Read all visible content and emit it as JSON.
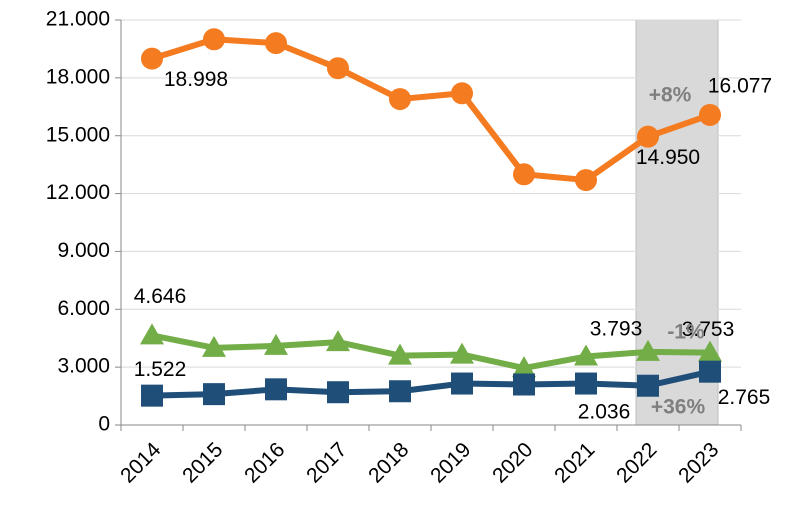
{
  "chart_data": {
    "type": "line",
    "categories": [
      "2014",
      "2015",
      "2016",
      "2017",
      "2018",
      "2019",
      "2020",
      "2021",
      "2022",
      "2023"
    ],
    "series": [
      {
        "name": "Orange",
        "color": "#f47b20",
        "marker": "circle",
        "values": [
          18998,
          20000,
          19800,
          18500,
          16900,
          17200,
          13000,
          12700,
          14950,
          16077
        ],
        "value_labels": [
          "18.998",
          null,
          null,
          null,
          null,
          null,
          null,
          null,
          "14.950",
          "16.077"
        ]
      },
      {
        "name": "Green",
        "color": "#72ad47",
        "marker": "triangle",
        "values": [
          4646,
          4000,
          4100,
          4300,
          3600,
          3650,
          2950,
          3550,
          3793,
          3753
        ],
        "value_labels": [
          "4.646",
          null,
          null,
          null,
          null,
          null,
          null,
          null,
          "3.793",
          "3.753"
        ]
      },
      {
        "name": "Blue",
        "color": "#1f4e79",
        "marker": "square",
        "values": [
          1522,
          1600,
          1850,
          1700,
          1750,
          2150,
          2100,
          2150,
          2036,
          2765
        ],
        "value_labels": [
          "1.522",
          null,
          null,
          null,
          null,
          null,
          null,
          null,
          "2.036",
          "2.765"
        ]
      }
    ],
    "annotations": [
      "+8%",
      "-1%",
      "+36%"
    ],
    "ylim": [
      0,
      21000
    ],
    "yticks": [
      0,
      {
        "value": 3000,
        "label": "3.000"
      },
      {
        "value": 6000,
        "label": "6.000"
      },
      {
        "value": 9000,
        "label": "9.000"
      },
      {
        "value": 12000,
        "label": "12.000"
      },
      {
        "value": 15000,
        "label": "15.000"
      },
      {
        "value": 18000,
        "label": "18.000"
      },
      {
        "value": 21000,
        "label": "21.000"
      }
    ],
    "grid": true
  }
}
